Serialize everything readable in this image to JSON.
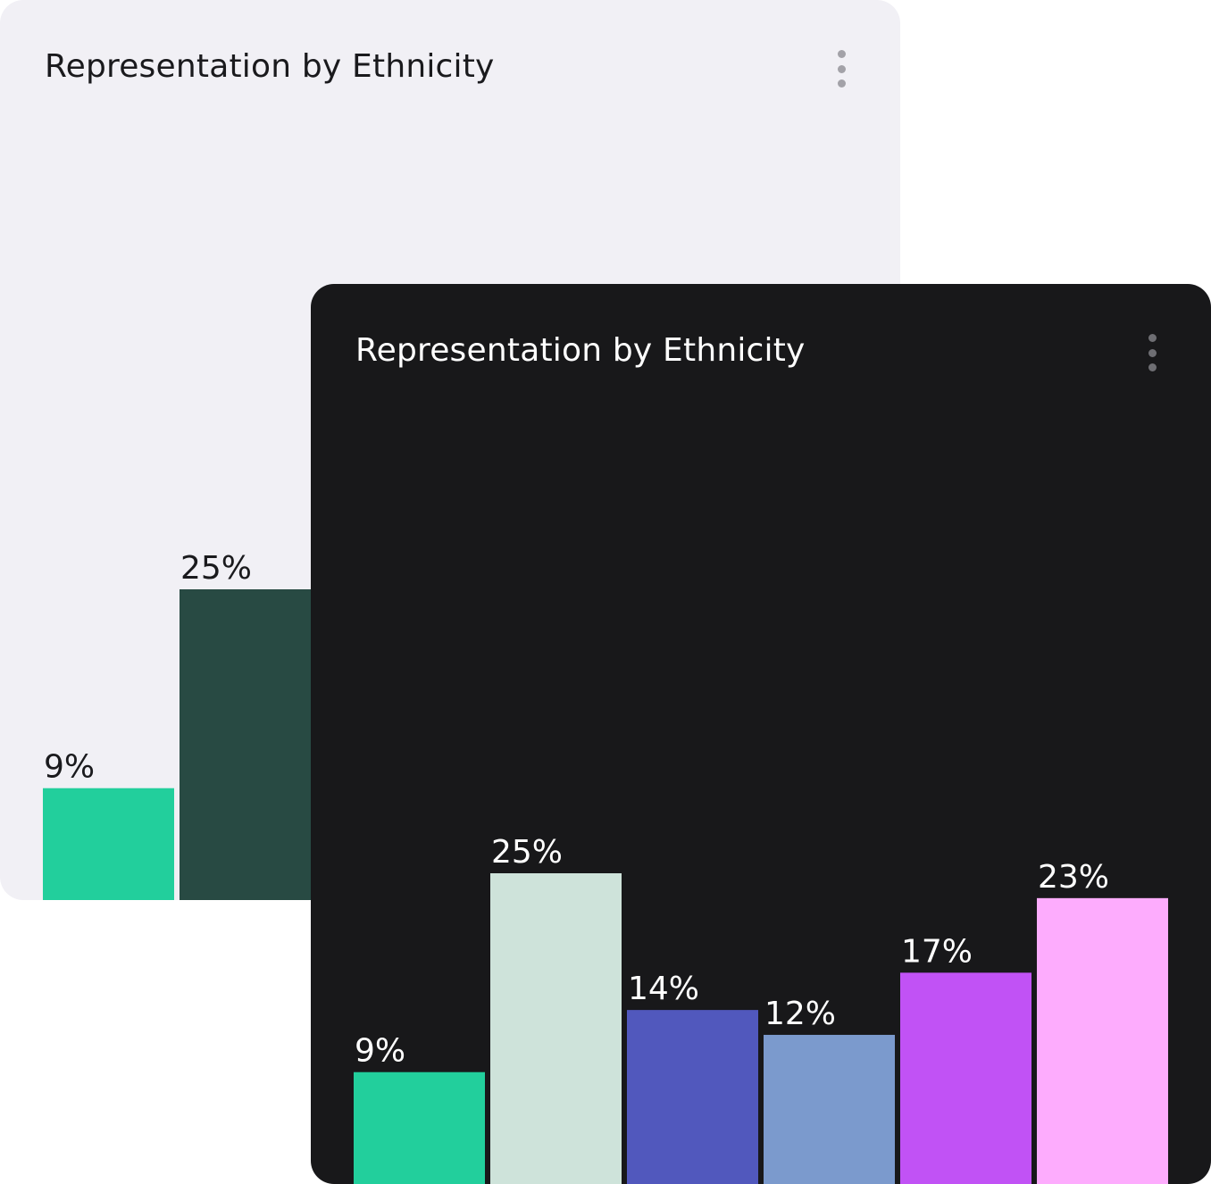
{
  "cards": [
    {
      "theme": "light",
      "title": "Representation by Ethnicity",
      "menu_icon": "kebab-menu-icon"
    },
    {
      "theme": "dark",
      "title": "Representation by Ethnicity",
      "menu_icon": "kebab-menu-icon"
    }
  ],
  "chart_data": [
    {
      "type": "bar",
      "title": "Representation by Ethnicity",
      "values": [
        9,
        25,
        14,
        12,
        17,
        23
      ],
      "labels": [
        "9%",
        "25%",
        "14%",
        "12%",
        "17%",
        "23%"
      ],
      "colors": [
        "#22cf9c",
        "#284a43",
        "#5158bd",
        "#7b9acd",
        "#c152f5",
        "#fdacfd"
      ],
      "ylim": [
        0,
        25
      ],
      "grid": false,
      "legend": "none"
    },
    {
      "type": "bar",
      "title": "Representation by Ethnicity",
      "values": [
        9,
        25,
        14,
        12,
        17,
        23
      ],
      "labels": [
        "9%",
        "25%",
        "14%",
        "12%",
        "17%",
        "23%"
      ],
      "colors": [
        "#22cf9c",
        "#cee3da",
        "#5158bd",
        "#7b9acd",
        "#c152f5",
        "#fdacfd"
      ],
      "ylim": [
        0,
        25
      ],
      "grid": false,
      "legend": "none"
    }
  ]
}
